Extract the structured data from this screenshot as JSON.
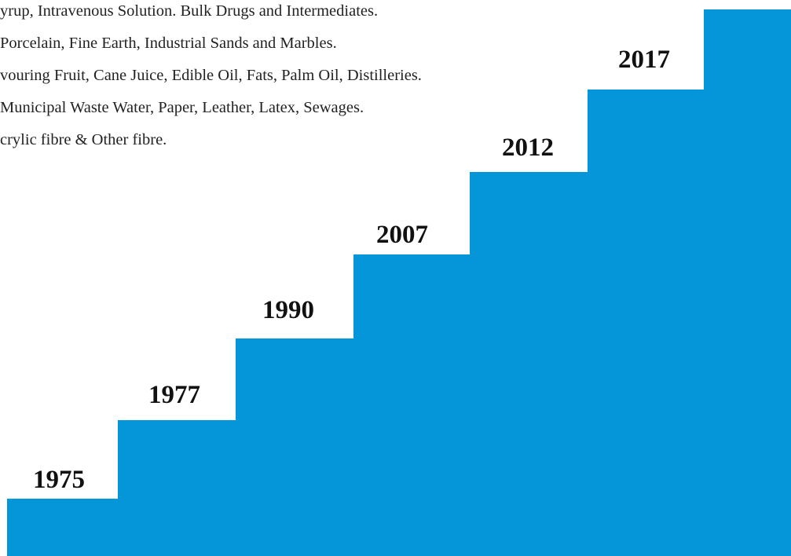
{
  "colors": {
    "stairs": "#0496d8",
    "text": "#222222",
    "year_text": "#111111"
  },
  "description_lines": [
    "yrup, Intravenous Solution. Bulk Drugs and Intermediates.",
    "Porcelain, Fine Earth, Industrial Sands and Marbles.",
    "vouring Fruit, Cane Juice, Edible Oil, Fats, Palm Oil, Distilleries.",
    " Municipal Waste Water, Paper, Leather, Latex, Sewages.",
    "crylic fibre & Other fibre."
  ],
  "timeline": {
    "years": [
      "1975",
      "1977",
      "1990",
      "2007",
      "2012",
      "2017"
    ]
  }
}
